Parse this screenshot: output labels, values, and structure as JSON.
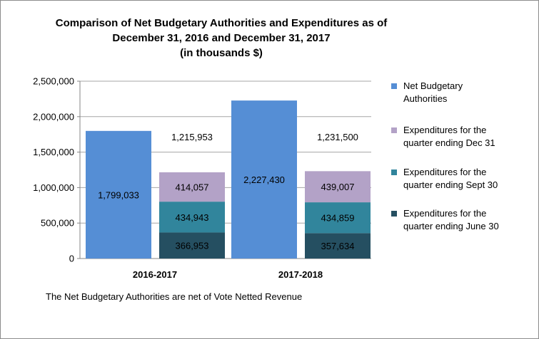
{
  "title": {
    "line1": "Comparison of Net Budgetary Authorities and Expenditures as of",
    "line2": "December 31, 2016 and December 31, 2017",
    "line3": "(in thousands $)"
  },
  "footnote": "The Net Budgetary Authorities are net of Vote Netted Revenue",
  "chart_data": {
    "type": "bar",
    "categories": [
      "2016-2017",
      "2017-2018"
    ],
    "series": [
      {
        "name": "Net Budgetary Authorities",
        "values": [
          1799033,
          2227430
        ],
        "labels": [
          "1,799,033",
          "2,227,430"
        ],
        "color": "#558ed5"
      },
      {
        "name": "Expenditures for the quarter ending June 30",
        "values": [
          366953,
          357634
        ],
        "labels": [
          "366,953",
          "357,634"
        ],
        "color": "#254f61"
      },
      {
        "name": "Expenditures for the quarter ending Sept 30",
        "values": [
          434943,
          434859
        ],
        "labels": [
          "434,943",
          "434,859"
        ],
        "color": "#31859c"
      },
      {
        "name": "Expenditures for the quarter ending Dec 31",
        "values": [
          414057,
          439007
        ],
        "labels": [
          "414,057",
          "439,007"
        ],
        "color": "#b3a2c7"
      }
    ],
    "stack_totals": [
      "1,215,953",
      "1,231,500"
    ],
    "yticks": [
      "0",
      "500,000",
      "1,000,000",
      "1,500,000",
      "2,000,000",
      "2,500,000"
    ],
    "ylim": [
      0,
      2500000
    ],
    "grid": true,
    "legend_position": "right"
  },
  "legend": [
    {
      "label": "Net Budgetary\nAuthorities",
      "color": "#558ed5"
    },
    {
      "label": "Expenditures for the\nquarter ending Dec 31",
      "color": "#b3a2c7"
    },
    {
      "label": "Expenditures for the\nquarter ending Sept 30",
      "color": "#31859c"
    },
    {
      "label": "Expenditures for the\nquarter ending June 30",
      "color": "#254f61"
    }
  ]
}
